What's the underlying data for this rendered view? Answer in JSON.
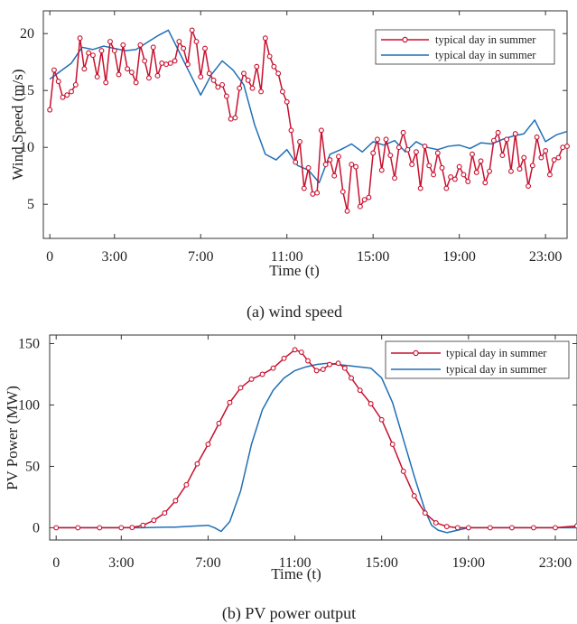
{
  "chart_data": [
    {
      "type": "line",
      "caption": "(a) wind speed",
      "xlabel": "Time (t)",
      "ylabel": "Wind Speed (m/s)",
      "xlim": [
        -0.3,
        24
      ],
      "ylim": [
        2,
        22
      ],
      "x_ticks": [
        0,
        3,
        7,
        11,
        15,
        19,
        23
      ],
      "x_tick_labels": [
        "0",
        "3:00",
        "7:00",
        "11:00",
        "15:00",
        "19:00",
        "23:00"
      ],
      "y_ticks": [
        5,
        10,
        15,
        20
      ],
      "y_tick_labels": [
        "5",
        "10",
        "15",
        "20"
      ],
      "legend_position": "top-right",
      "series": [
        {
          "name": "typical day in summer",
          "color": "#c8102e",
          "marker": "circle",
          "x": [
            0,
            0.2,
            0.4,
            0.6,
            0.8,
            1,
            1.2,
            1.4,
            1.6,
            1.8,
            2,
            2.2,
            2.4,
            2.6,
            2.8,
            3,
            3.2,
            3.4,
            3.6,
            3.8,
            4,
            4.2,
            4.4,
            4.6,
            4.8,
            5,
            5.2,
            5.4,
            5.6,
            5.8,
            6,
            6.2,
            6.4,
            6.6,
            6.8,
            7,
            7.2,
            7.4,
            7.6,
            7.8,
            8,
            8.2,
            8.4,
            8.6,
            8.8,
            9,
            9.2,
            9.4,
            9.6,
            9.8,
            10,
            10.2,
            10.4,
            10.6,
            10.8,
            11,
            11.2,
            11.4,
            11.6,
            11.8,
            12,
            12.2,
            12.4,
            12.6,
            12.8,
            13,
            13.2,
            13.4,
            13.6,
            13.8,
            14,
            14.2,
            14.4,
            14.6,
            14.8,
            15,
            15.2,
            15.4,
            15.6,
            15.8,
            16,
            16.2,
            16.4,
            16.6,
            16.8,
            17,
            17.2,
            17.4,
            17.6,
            17.8,
            18,
            18.2,
            18.4,
            18.6,
            18.8,
            19,
            19.2,
            19.4,
            19.6,
            19.8,
            20,
            20.2,
            20.4,
            20.6,
            20.8,
            21,
            21.2,
            21.4,
            21.6,
            21.8,
            22,
            22.2,
            22.4,
            22.6,
            22.8,
            23,
            23.2,
            23.4,
            23.6,
            23.8
          ],
          "values": [
            13.3,
            16.8,
            15.8,
            14.4,
            14.6,
            14.9,
            15.5,
            19.6,
            16.9,
            18.3,
            18.1,
            16.2,
            18.5,
            15.7,
            19.3,
            18.5,
            16.4,
            19.0,
            16.9,
            16.6,
            15.7,
            19.0,
            17.6,
            16.1,
            18.8,
            16.3,
            17.4,
            17.3,
            17.4,
            17.6,
            19.3,
            18.7,
            17.3,
            20.3,
            19.3,
            16.2,
            18.7,
            16.5,
            15.9,
            15.3,
            15.5,
            14.5,
            12.5,
            12.6,
            15.2,
            16.5,
            15.9,
            15.2,
            17.1,
            14.9,
            19.6,
            18.0,
            17.1,
            16.5,
            14.9,
            14.0,
            11.5,
            8.7,
            10.5,
            6.4,
            8.2,
            5.9,
            6.0,
            11.5,
            8.5,
            8.9,
            7.5,
            9.2,
            6.1,
            4.4,
            8.5,
            8.3,
            4.8,
            5.4,
            5.6,
            9.5,
            10.7,
            8.0,
            10.7,
            9.3,
            7.3,
            10.0,
            11.3,
            9.8,
            8.5,
            9.6,
            6.4,
            10.1,
            8.4,
            7.6,
            9.5,
            8.2,
            6.4,
            7.4,
            7.2,
            8.3,
            7.6,
            7.0,
            9.4,
            7.8,
            8.8,
            6.9,
            7.9,
            10.6,
            11.3,
            9.3,
            10.7,
            7.9,
            11.2,
            8.1,
            9.1,
            6.6,
            8.4,
            10.9,
            9.1,
            9.7,
            7.6,
            8.9,
            9.1,
            10.0
          ],
          "values_continued_x": [
            24.0
          ],
          "values_continued": [
            10.1
          ]
        },
        {
          "name": "typical day in summer",
          "color": "#1f6fb5",
          "marker": "none",
          "x": [
            0,
            0.5,
            1,
            1.5,
            2,
            2.5,
            3,
            3.5,
            4,
            4.5,
            5,
            5.5,
            6,
            6.5,
            7,
            7.5,
            8,
            8.5,
            9,
            9.5,
            10,
            10.5,
            11,
            11.5,
            12,
            12.5,
            13,
            13.5,
            14,
            14.5,
            15,
            15.5,
            16,
            16.5,
            17,
            17.5,
            18,
            18.5,
            19,
            19.5,
            20,
            20.5,
            21,
            21.5,
            22,
            22.5,
            23,
            23.5,
            24
          ],
          "values": [
            16.0,
            16.7,
            17.4,
            18.8,
            18.6,
            18.9,
            18.7,
            18.5,
            18.6,
            19.2,
            19.8,
            20.3,
            18.4,
            16.5,
            14.6,
            16.4,
            17.6,
            16.8,
            15.5,
            12.0,
            9.4,
            8.9,
            9.8,
            8.4,
            8.0,
            6.9,
            9.4,
            9.8,
            10.3,
            9.6,
            10.5,
            10.2,
            10.6,
            9.6,
            10.5,
            10.0,
            9.8,
            10.1,
            10.2,
            9.9,
            10.4,
            10.3,
            10.7,
            11.0,
            11.2,
            12.4,
            10.5,
            11.1,
            11.4
          ]
        }
      ]
    },
    {
      "type": "line",
      "caption": "(b)  PV power output",
      "xlabel": "Time (t)",
      "ylabel": "PV Power (MW)",
      "xlim": [
        -0.3,
        24
      ],
      "ylim": [
        -10,
        157
      ],
      "x_ticks": [
        0,
        3,
        7,
        11,
        15,
        19,
        23
      ],
      "x_tick_labels": [
        "0",
        "3:00",
        "7:00",
        "11:00",
        "15:00",
        "19:00",
        "23:00"
      ],
      "y_ticks": [
        0,
        50,
        100,
        150
      ],
      "y_tick_labels": [
        "0",
        "50",
        "100",
        "150"
      ],
      "legend_position": "top-right",
      "series": [
        {
          "name": "typical day in summer",
          "color": "#c8102e",
          "marker": "circle",
          "x": [
            0,
            1,
            2,
            3,
            3.5,
            4,
            4.5,
            5,
            5.5,
            6,
            6.5,
            7,
            7.5,
            8,
            8.5,
            9,
            9.5,
            10,
            10.5,
            11,
            11.3,
            11.6,
            12,
            12.3,
            12.6,
            13,
            13.3,
            13.6,
            14,
            14.5,
            15,
            15.5,
            16,
            16.5,
            17,
            17.5,
            18,
            18.5,
            19,
            20,
            21,
            22,
            23,
            24
          ],
          "values": [
            0,
            0,
            0,
            0,
            0.2,
            2,
            6,
            12,
            22,
            35,
            52,
            68,
            85,
            102,
            114,
            121,
            125,
            130,
            138,
            145,
            143,
            136,
            128,
            129,
            133,
            134,
            130,
            122,
            112,
            101,
            88,
            68,
            46,
            26,
            12,
            4,
            1,
            0,
            0,
            0,
            0,
            0,
            0,
            1.5
          ]
        },
        {
          "name": "typical day in summer",
          "color": "#1f6fb5",
          "marker": "none",
          "x": [
            0,
            1,
            2,
            3,
            4,
            5,
            5.5,
            6,
            6.5,
            7,
            7.3,
            7.6,
            8,
            8.5,
            9,
            9.5,
            10,
            10.5,
            11,
            11.5,
            12,
            12.5,
            13,
            13.5,
            14,
            14.5,
            15,
            15.5,
            16,
            16.5,
            17,
            17.3,
            17.6,
            18,
            18.5,
            19,
            20,
            21,
            22,
            23,
            24
          ],
          "values": [
            0,
            0,
            0,
            0,
            0,
            0.5,
            0.5,
            1,
            1.5,
            2,
            0,
            -3,
            5,
            30,
            68,
            96,
            112,
            122,
            128,
            131,
            133,
            134,
            133,
            132,
            131,
            130,
            122,
            102,
            72,
            42,
            14,
            2,
            -2,
            -4,
            -2,
            0,
            0,
            0,
            0,
            0,
            0
          ]
        }
      ]
    }
  ]
}
